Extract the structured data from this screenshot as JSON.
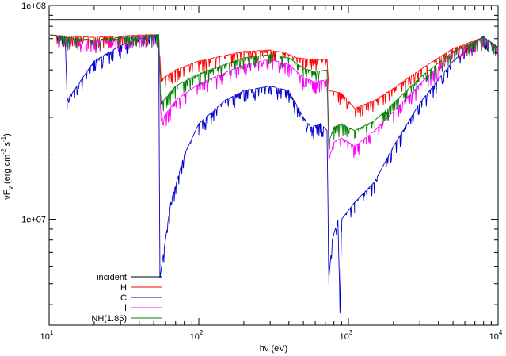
{
  "chart_data": {
    "type": "line",
    "title": "",
    "xlabel": "hν (eV)",
    "ylabel_parts": [
      "νF",
      "ν",
      "  (erg cm",
      "-2",
      " s",
      "-1",
      ")"
    ],
    "x_scale": "log",
    "y_scale": "log",
    "xlim": [
      10,
      10000
    ],
    "ylim": [
      3200000.0,
      100000000.0
    ],
    "grid": false,
    "legend_position": "bottom-left",
    "x_ticks": [
      {
        "value": 10,
        "base": "10",
        "exp": "1"
      },
      {
        "value": 100,
        "base": "10",
        "exp": "2"
      },
      {
        "value": 1000,
        "base": "10",
        "exp": "3"
      },
      {
        "value": 10000,
        "base": "10",
        "exp": "4"
      }
    ],
    "y_ticks": [
      {
        "value": 10000000,
        "label": "1e+07"
      },
      {
        "value": 100000000,
        "label": "1e+08"
      }
    ],
    "series": [
      {
        "name": "incident",
        "color": "#000000",
        "points": [
          [
            10,
            86000000.0
          ],
          [
            10000,
            86000000.0
          ]
        ]
      },
      {
        "name": "H",
        "color": "#ff0000",
        "points": [
          [
            10,
            73000000.0
          ],
          [
            13,
            72000000.0
          ],
          [
            20,
            71000000.0
          ],
          [
            30,
            72000000.0
          ],
          [
            45,
            73000000.0
          ],
          [
            54,
            73000000.0
          ],
          [
            56,
            45000000.0
          ],
          [
            70,
            50000000.0
          ],
          [
            100,
            55000000.0
          ],
          [
            200,
            61000000.0
          ],
          [
            300,
            62000000.0
          ],
          [
            380,
            60000000.0
          ],
          [
            450,
            57000000.0
          ],
          [
            560,
            56000000.0
          ],
          [
            720,
            56000000.0
          ],
          [
            740,
            40000000.0
          ],
          [
            900,
            39000000.0
          ],
          [
            1100,
            33000000.0
          ],
          [
            1500,
            36000000.0
          ],
          [
            2000,
            41000000.0
          ],
          [
            3000,
            50000000.0
          ],
          [
            5000,
            63000000.0
          ],
          [
            8000,
            71000000.0
          ],
          [
            10000,
            64000000.0
          ]
        ]
      },
      {
        "name": "C",
        "color": "#0000cc",
        "points": [
          [
            10,
            73000000.0
          ],
          [
            12.8,
            71000000.0
          ],
          [
            13.2,
            36000000.0
          ],
          [
            20,
            55000000.0
          ],
          [
            30,
            65000000.0
          ],
          [
            45,
            72000000.0
          ],
          [
            54,
            73000000.0
          ],
          [
            55,
            5300000.0
          ],
          [
            65,
            12000000.0
          ],
          [
            80,
            20000000.0
          ],
          [
            100,
            28000000.0
          ],
          [
            150,
            36000000.0
          ],
          [
            200,
            40000000.0
          ],
          [
            300,
            42000000.0
          ],
          [
            400,
            40000000.0
          ],
          [
            500,
            30000000.0
          ],
          [
            560,
            27000000.0
          ],
          [
            650,
            28000000.0
          ],
          [
            720,
            26000000.0
          ],
          [
            740,
            5300000.0
          ],
          [
            780,
            8000000.0
          ],
          [
            850,
            10000000.0
          ],
          [
            880,
            3800000.0
          ],
          [
            900,
            10000000.0
          ],
          [
            1100,
            12000000.0
          ],
          [
            1500,
            15000000.0
          ],
          [
            2000,
            22000000.0
          ],
          [
            3000,
            35000000.0
          ],
          [
            5000,
            55000000.0
          ],
          [
            8000,
            72000000.0
          ],
          [
            10000,
            63000000.0
          ]
        ]
      },
      {
        "name": "I",
        "color": "#ff00ff",
        "points": [
          [
            10,
            73000000.0
          ],
          [
            13,
            70000000.0
          ],
          [
            20,
            68000000.0
          ],
          [
            30,
            70000000.0
          ],
          [
            54,
            73000000.0
          ],
          [
            56,
            29000000.0
          ],
          [
            70,
            36000000.0
          ],
          [
            100,
            43000000.0
          ],
          [
            200,
            53000000.0
          ],
          [
            300,
            56000000.0
          ],
          [
            400,
            53000000.0
          ],
          [
            500,
            46000000.0
          ],
          [
            600,
            44000000.0
          ],
          [
            720,
            45000000.0
          ],
          [
            740,
            19000000.0
          ],
          [
            800,
            23000000.0
          ],
          [
            900,
            24000000.0
          ],
          [
            1100,
            22000000.0
          ],
          [
            1500,
            26000000.0
          ],
          [
            2000,
            32000000.0
          ],
          [
            3000,
            43000000.0
          ],
          [
            5000,
            60000000.0
          ],
          [
            8000,
            71000000.0
          ],
          [
            10000,
            64000000.0
          ]
        ]
      },
      {
        "name": "NH(1.86)",
        "color": "#008000",
        "points": [
          [
            10,
            73000000.0
          ],
          [
            13,
            71000000.0
          ],
          [
            20,
            69000000.0
          ],
          [
            30,
            71000000.0
          ],
          [
            54,
            73000000.0
          ],
          [
            56,
            35000000.0
          ],
          [
            70,
            42000000.0
          ],
          [
            100,
            48000000.0
          ],
          [
            200,
            57000000.0
          ],
          [
            300,
            59000000.0
          ],
          [
            400,
            57000000.0
          ],
          [
            500,
            51000000.0
          ],
          [
            600,
            49000000.0
          ],
          [
            720,
            50000000.0
          ],
          [
            740,
            23000000.0
          ],
          [
            800,
            27000000.0
          ],
          [
            900,
            28000000.0
          ],
          [
            1100,
            26000000.0
          ],
          [
            1500,
            29000000.0
          ],
          [
            2000,
            35000000.0
          ],
          [
            3000,
            46000000.0
          ],
          [
            5000,
            61000000.0
          ],
          [
            8000,
            71000000.0
          ],
          [
            10000,
            64000000.0
          ]
        ]
      }
    ]
  }
}
